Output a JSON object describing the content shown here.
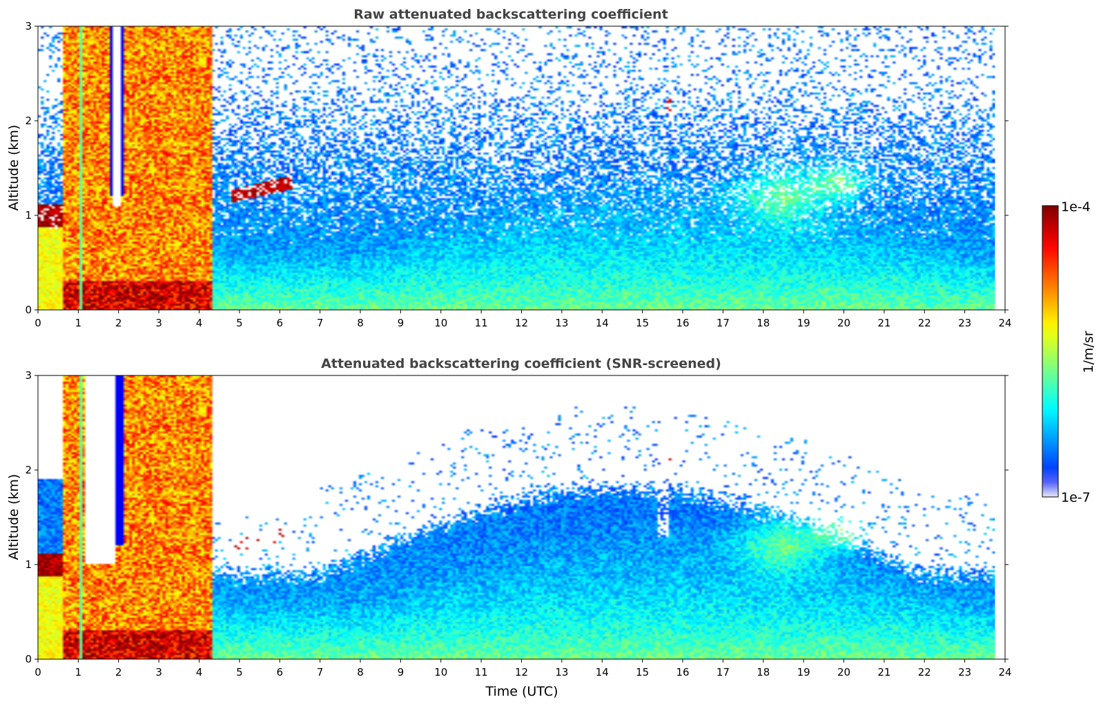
{
  "chart_data": {
    "type": "heatmap",
    "panels": [
      {
        "title": "Raw attenuated backscattering coefficient",
        "xlabel": "",
        "ylabel": "Altitude (km)",
        "screened": false
      },
      {
        "title": "Attenuated backscattering coefficient (SNR-screened)",
        "xlabel": "Time (UTC)",
        "ylabel": "Altitude (km)",
        "screened": true
      }
    ],
    "x_range": [
      0,
      24
    ],
    "y_range": [
      0,
      3
    ],
    "x_ticks": [
      "0",
      "1",
      "2",
      "3",
      "4",
      "5",
      "6",
      "7",
      "8",
      "9",
      "10",
      "11",
      "12",
      "13",
      "14",
      "15",
      "16",
      "17",
      "18",
      "19",
      "20",
      "21",
      "22",
      "23",
      "24"
    ],
    "y_ticks": [
      "0",
      "1",
      "2",
      "3"
    ],
    "data_x_extent": [
      0,
      23.75
    ],
    "colorbar": {
      "label": "1/m/sr",
      "min_label": "1e-7",
      "max_label": "1e-4",
      "min": 1e-07,
      "max": 0.0001,
      "scale": "log",
      "colormap": "jet",
      "low_color": "#e8e8f8",
      "high_color": "#7f0000"
    },
    "features": [
      {
        "desc": "low cloud layer",
        "t_start": 0.0,
        "t_end": 1.7,
        "altitude_km": 1.0
      },
      {
        "desc": "precipitation / dense cloud",
        "t_start": 0.6,
        "t_end": 4.3,
        "altitude_km": [
          0,
          3
        ]
      },
      {
        "desc": "broken cloud layer",
        "t_start": 4.8,
        "t_end": 6.3,
        "altitude_km": 1.35
      },
      {
        "desc": "elevated aerosol patches",
        "t_start": 18.0,
        "t_end": 20.2,
        "altitude_km": 1.4
      },
      {
        "desc": "thin cloud",
        "t_start": 15.6,
        "t_end": 15.7,
        "altitude_km": 2.15
      }
    ]
  }
}
